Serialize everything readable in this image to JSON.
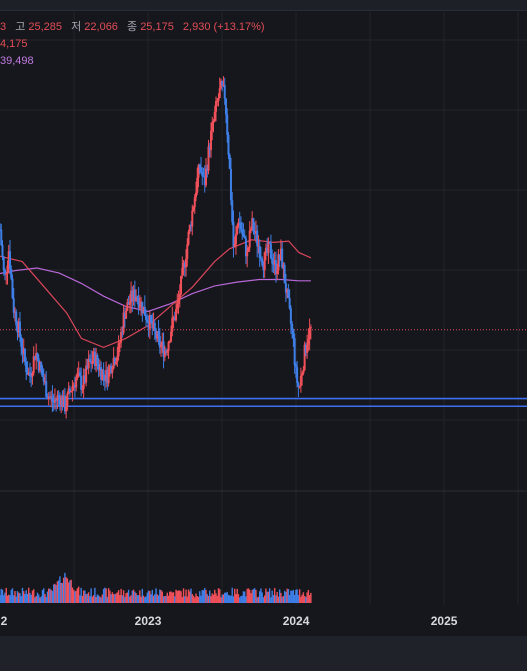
{
  "ohlc": {
    "open_tail": "3",
    "high_label": "고",
    "high": "25,285",
    "low_label": "저",
    "low": "22,066",
    "close_label": "종",
    "close": "25,175",
    "change": "2,930 (+13.17%)"
  },
  "ma_labels": {
    "ma_red": "4,175",
    "ma_purple": "39,498"
  },
  "colors": {
    "up": "#f0505a",
    "down": "#3f7fe8",
    "ma_long": "#d9455a",
    "ma_longer": "#b867d6",
    "support": "#3d6ff0",
    "bg": "#16171c",
    "grid": "#23252c",
    "label_gray": "#a8abb4",
    "price_red": "#e24c57",
    "price_purple": "#c07be0"
  },
  "chart_data": {
    "type": "candlestick",
    "x_ticks": [
      "2",
      "2023",
      "2024",
      "2025"
    ],
    "y_range": [
      15000,
      50000
    ],
    "support_lines": [
      19800,
      19200
    ],
    "reference_line": 25175,
    "price_path": [
      [
        2022.0,
        33000
      ],
      [
        2022.03,
        29000
      ],
      [
        2022.06,
        31500
      ],
      [
        2022.09,
        27000
      ],
      [
        2022.13,
        25000
      ],
      [
        2022.17,
        22500
      ],
      [
        2022.2,
        21500
      ],
      [
        2022.24,
        23500
      ],
      [
        2022.28,
        21800
      ],
      [
        2022.32,
        20200
      ],
      [
        2022.36,
        19500
      ],
      [
        2022.4,
        20000
      ],
      [
        2022.44,
        19200
      ],
      [
        2022.48,
        20600
      ],
      [
        2022.52,
        21500
      ],
      [
        2022.56,
        20800
      ],
      [
        2022.6,
        22500
      ],
      [
        2022.64,
        23000
      ],
      [
        2022.68,
        22000
      ],
      [
        2022.72,
        21500
      ],
      [
        2022.76,
        22800
      ],
      [
        2022.8,
        23500
      ],
      [
        2022.84,
        26500
      ],
      [
        2022.88,
        27500
      ],
      [
        2022.92,
        28000
      ],
      [
        2022.96,
        27000
      ],
      [
        2023.0,
        26000
      ],
      [
        2023.04,
        25000
      ],
      [
        2023.08,
        24000
      ],
      [
        2023.12,
        23500
      ],
      [
        2023.16,
        25500
      ],
      [
        2023.2,
        27000
      ],
      [
        2023.24,
        30000
      ],
      [
        2023.28,
        33000
      ],
      [
        2023.32,
        36000
      ],
      [
        2023.35,
        38000
      ],
      [
        2023.38,
        36500
      ],
      [
        2023.42,
        40000
      ],
      [
        2023.46,
        42500
      ],
      [
        2023.49,
        44000
      ],
      [
        2023.52,
        43500
      ],
      [
        2023.55,
        38000
      ],
      [
        2023.58,
        31000
      ],
      [
        2023.61,
        34000
      ],
      [
        2023.64,
        32500
      ],
      [
        2023.67,
        31000
      ],
      [
        2023.7,
        33500
      ],
      [
        2023.74,
        32000
      ],
      [
        2023.78,
        30500
      ],
      [
        2023.82,
        31500
      ],
      [
        2023.86,
        30000
      ],
      [
        2023.9,
        31000
      ],
      [
        2023.93,
        28500
      ],
      [
        2023.96,
        26000
      ],
      [
        2023.98,
        24500
      ],
      [
        2024.0,
        21500
      ],
      [
        2024.02,
        20500
      ],
      [
        2024.04,
        22000
      ],
      [
        2024.06,
        23500
      ],
      [
        2024.08,
        24800
      ],
      [
        2024.1,
        25175
      ]
    ],
    "ma_long": [
      [
        2021.97,
        31000
      ],
      [
        2022.15,
        30500
      ],
      [
        2022.3,
        28500
      ],
      [
        2022.45,
        26500
      ],
      [
        2022.55,
        24500
      ],
      [
        2022.7,
        23800
      ],
      [
        2022.85,
        24500
      ],
      [
        2023.0,
        25500
      ],
      [
        2023.15,
        27000
      ],
      [
        2023.3,
        28500
      ],
      [
        2023.45,
        30500
      ],
      [
        2023.55,
        31500
      ],
      [
        2023.7,
        32200
      ],
      [
        2023.85,
        32000
      ],
      [
        2023.95,
        32100
      ],
      [
        2024.02,
        31200
      ],
      [
        2024.1,
        30800
      ]
    ],
    "ma_longer": [
      [
        2021.97,
        29500
      ],
      [
        2022.1,
        29800
      ],
      [
        2022.25,
        30000
      ],
      [
        2022.4,
        29600
      ],
      [
        2022.55,
        28800
      ],
      [
        2022.7,
        27800
      ],
      [
        2022.85,
        27000
      ],
      [
        2023.0,
        26600
      ],
      [
        2023.15,
        27200
      ],
      [
        2023.3,
        28000
      ],
      [
        2023.45,
        28600
      ],
      [
        2023.6,
        28900
      ],
      [
        2023.75,
        29100
      ],
      [
        2023.9,
        29100
      ],
      [
        2024.02,
        29000
      ],
      [
        2024.1,
        29000
      ]
    ],
    "volume": {
      "baseline_level": 1,
      "spike_year": 2025.25,
      "spike_relative": 9
    }
  }
}
